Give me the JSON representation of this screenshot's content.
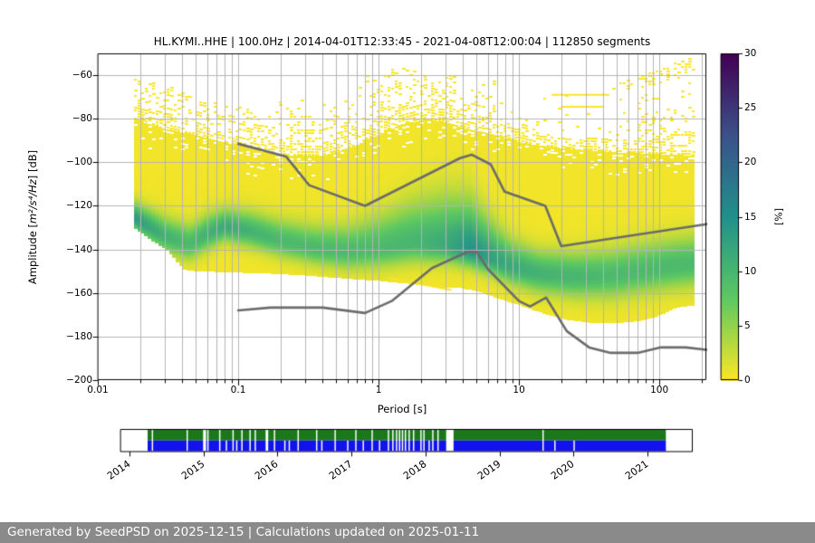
{
  "figure": {
    "title": "HL.KYMI..HHE | 100.0Hz | 2014-04-01T12:33:45 - 2021-04-08T12:00:04 | 112850 segments"
  },
  "chart_data": {
    "type": "heatmap",
    "title": "HL.KYMI..HHE | 100.0Hz | 2014-04-01T12:33:45 - 2021-04-08T12:00:04 | 112850 segments",
    "xlabel": "Period [s]",
    "ylabel": "Amplitude [m²/s⁴/Hz] [dB]",
    "ylabel_parts": {
      "prefix": "Amplitude [",
      "math": "m²/s⁴/Hz",
      "suffix": "] [dB]"
    },
    "x_scale": "log",
    "xlim": [
      0.01,
      216
    ],
    "ylim": [
      -200,
      -50
    ],
    "grid": true,
    "x_major_ticks": [
      {
        "v": 0.01,
        "label": "0.01"
      },
      {
        "v": 0.1,
        "label": "0.1"
      },
      {
        "v": 1,
        "label": "1"
      },
      {
        "v": 10,
        "label": "10"
      },
      {
        "v": 100,
        "label": "100"
      }
    ],
    "y_major_ticks": [
      {
        "value": -60,
        "label": "−60"
      },
      {
        "value": -80,
        "label": "−80"
      },
      {
        "value": -100,
        "label": "−100"
      },
      {
        "value": -120,
        "label": "−120"
      },
      {
        "value": -140,
        "label": "−140"
      },
      {
        "value": -160,
        "label": "−160"
      },
      {
        "value": -180,
        "label": "−180"
      },
      {
        "value": -200,
        "label": "−200"
      }
    ],
    "colorbar": {
      "label": "[%]",
      "min": 0,
      "max": 30,
      "colormap": "viridis_r",
      "ticks": [
        {
          "value": 0,
          "label": "0"
        },
        {
          "value": 5,
          "label": "5"
        },
        {
          "value": 10,
          "label": "10"
        },
        {
          "value": 15,
          "label": "15"
        },
        {
          "value": 20,
          "label": "20"
        },
        {
          "value": 25,
          "label": "25"
        },
        {
          "value": 30,
          "label": "30"
        }
      ]
    },
    "ppsd": {
      "period_range_s": [
        0.018,
        178
      ],
      "column_bin_log10": 0.0251,
      "base_percent": 0.55,
      "envelopes": {
        "bottom_db": [
          [
            0.018,
            -130
          ],
          [
            0.022,
            -134
          ],
          [
            0.027,
            -138
          ],
          [
            0.032,
            -141
          ],
          [
            0.037,
            -146
          ],
          [
            0.042,
            -149.5
          ],
          [
            0.05,
            -150
          ],
          [
            0.08,
            -150.5
          ],
          [
            0.15,
            -151
          ],
          [
            0.3,
            -152
          ],
          [
            0.6,
            -153.5
          ],
          [
            1.0,
            -154.5
          ],
          [
            1.8,
            -156
          ],
          [
            2.6,
            -157.5
          ],
          [
            3.5,
            -157.5
          ],
          [
            5.0,
            -159
          ],
          [
            7.0,
            -162.5
          ],
          [
            10.0,
            -165.5
          ],
          [
            15.0,
            -169.5
          ],
          [
            22.0,
            -172.5
          ],
          [
            35.0,
            -174
          ],
          [
            50,
            -174
          ],
          [
            70,
            -173
          ],
          [
            90,
            -171.5
          ],
          [
            110,
            -169.5
          ],
          [
            130,
            -167
          ],
          [
            160,
            -166
          ],
          [
            178,
            -166
          ]
        ],
        "solid_top_db": [
          [
            0.018,
            -80
          ],
          [
            0.03,
            -84.5
          ],
          [
            0.05,
            -87.5
          ],
          [
            0.08,
            -91
          ],
          [
            0.13,
            -94.5
          ],
          [
            0.22,
            -97
          ],
          [
            0.4,
            -97
          ],
          [
            0.65,
            -93
          ],
          [
            0.95,
            -88
          ],
          [
            1.4,
            -83
          ],
          [
            2.2,
            -80
          ],
          [
            3.2,
            -82
          ],
          [
            4.5,
            -85
          ],
          [
            6.5,
            -87
          ],
          [
            9,
            -90
          ],
          [
            13,
            -92
          ],
          [
            20,
            -93.5
          ],
          [
            30,
            -94.5
          ],
          [
            50,
            -95.5
          ],
          [
            80,
            -96
          ],
          [
            120,
            -96.5
          ],
          [
            178,
            -97
          ]
        ],
        "streak_top_db": [
          [
            0.018,
            -61
          ],
          [
            0.03,
            -64
          ],
          [
            0.05,
            -69
          ],
          [
            0.08,
            -73
          ],
          [
            0.15,
            -71
          ],
          [
            0.3,
            -70
          ],
          [
            0.5,
            -66
          ],
          [
            0.8,
            -59
          ],
          [
            1.5,
            -56
          ],
          [
            2.5,
            -58
          ],
          [
            4,
            -60
          ],
          [
            6,
            -58
          ],
          [
            9,
            -57
          ],
          [
            12,
            -64
          ],
          [
            18,
            -66
          ],
          [
            25,
            -67
          ],
          [
            35,
            -68
          ],
          [
            50,
            -64
          ],
          [
            80,
            -59
          ],
          [
            120,
            -55
          ],
          [
            178,
            -51
          ]
        ]
      },
      "mode_band": [
        [
          0.018,
          -125.5,
          5,
          4,
          13
        ],
        [
          0.03,
          -134,
          6,
          5,
          10
        ],
        [
          0.045,
          -137.5,
          6,
          5,
          9
        ],
        [
          0.06,
          -133,
          6,
          5,
          10
        ],
        [
          0.08,
          -129.5,
          5.5,
          4.5,
          11
        ],
        [
          0.12,
          -131.5,
          6,
          5,
          10
        ],
        [
          0.2,
          -136,
          6.5,
          5,
          9
        ],
        [
          0.35,
          -139.5,
          7,
          5,
          9
        ],
        [
          0.6,
          -141,
          8,
          5.5,
          9
        ],
        [
          1.0,
          -139.5,
          10,
          6,
          9
        ],
        [
          1.8,
          -137,
          13,
          6,
          9.5
        ],
        [
          3.0,
          -138,
          15,
          5.5,
          11
        ],
        [
          4.5,
          -140.5,
          15,
          5,
          14
        ],
        [
          6.5,
          -144.5,
          11,
          5,
          12
        ],
        [
          9,
          -148,
          8,
          5.5,
          11
        ],
        [
          14,
          -151,
          7,
          6,
          10
        ],
        [
          25,
          -152.5,
          7.5,
          6.5,
          9.5
        ],
        [
          45,
          -152,
          8,
          7,
          9
        ],
        [
          80,
          -149.5,
          8.5,
          7,
          9
        ],
        [
          130,
          -147.5,
          8.5,
          7,
          9
        ],
        [
          178,
          -146.5,
          8.5,
          7,
          9
        ]
      ],
      "streaks": {
        "seed": 1337,
        "extra": [
          {
            "p": [
              17,
              44
            ],
            "db": [
              -69,
              -69
            ]
          },
          {
            "p": [
              20,
              40
            ],
            "db": [
              -74.5,
              -74.5
            ]
          },
          {
            "p": [
              1.2,
              3.3
            ],
            "db": [
              -153.3,
              -158.7
            ]
          }
        ]
      }
    },
    "noise_models": {
      "color": "#6b6b6b",
      "width": 2.6,
      "nhnm": [
        [
          0.1,
          -91.5
        ],
        [
          0.22,
          -97.4
        ],
        [
          0.32,
          -110.5
        ],
        [
          0.8,
          -120.0
        ],
        [
          3.8,
          -98.1
        ],
        [
          4.6,
          -96.5
        ],
        [
          6.3,
          -101.0
        ],
        [
          7.9,
          -113.5
        ],
        [
          15.4,
          -120.0
        ],
        [
          20.0,
          -138.5
        ],
        [
          216.0,
          -128.4
        ]
      ],
      "nlnm": [
        [
          0.1,
          -168.0
        ],
        [
          0.17,
          -166.7
        ],
        [
          0.4,
          -166.7
        ],
        [
          0.8,
          -169.2
        ],
        [
          1.24,
          -163.7
        ],
        [
          2.4,
          -148.6
        ],
        [
          4.3,
          -141.1
        ],
        [
          5.0,
          -141.1
        ],
        [
          6.0,
          -149.0
        ],
        [
          10.0,
          -163.7
        ],
        [
          12.0,
          -166.2
        ],
        [
          15.6,
          -162.1
        ],
        [
          21.9,
          -177.5
        ],
        [
          31.6,
          -185.0
        ],
        [
          45.0,
          -187.5
        ],
        [
          70.0,
          -187.5
        ],
        [
          101.0,
          -185.0
        ],
        [
          154.0,
          -185.0
        ],
        [
          216.0,
          -186.1
        ]
      ]
    }
  },
  "timeline": {
    "year_ticks": [
      2014,
      2015,
      2016,
      2017,
      2018,
      2019,
      2020,
      2021
    ],
    "coverage": {
      "start": 2014.245,
      "end": 2021.25
    },
    "colors": {
      "top_row": "#1a781a",
      "bottom_row": "#1212ee"
    },
    "gap_width_years": 0.018,
    "gaps_both": [
      2014.31,
      2014.78,
      2015.06,
      2015.22,
      2015.4,
      2015.52,
      2015.63,
      2015.7,
      2015.96,
      2016.28,
      2016.53,
      2016.78,
      2017.06,
      2017.28,
      2017.5,
      2017.56,
      2017.61,
      2017.65,
      2017.69,
      2017.73,
      2017.78,
      2017.84,
      2017.94,
      2017.98,
      2018.1,
      2018.17,
      2019.59
    ],
    "gaps_bottom_only": [
      2015.31,
      2015.45,
      2016.1,
      2016.16,
      2016.6,
      2016.95,
      2017.16,
      2017.38,
      2018.05,
      2019.75,
      2020.01
    ],
    "wide_gaps": [
      {
        "start": 2014.995,
        "end": 2015.035
      },
      {
        "start": 2015.84,
        "end": 2015.875
      },
      {
        "start": 2018.28,
        "end": 2018.38
      }
    ]
  },
  "footer": {
    "text": "Generated by SeedPSD on 2025-12-15 | Calculations updated on 2025-01-11"
  }
}
